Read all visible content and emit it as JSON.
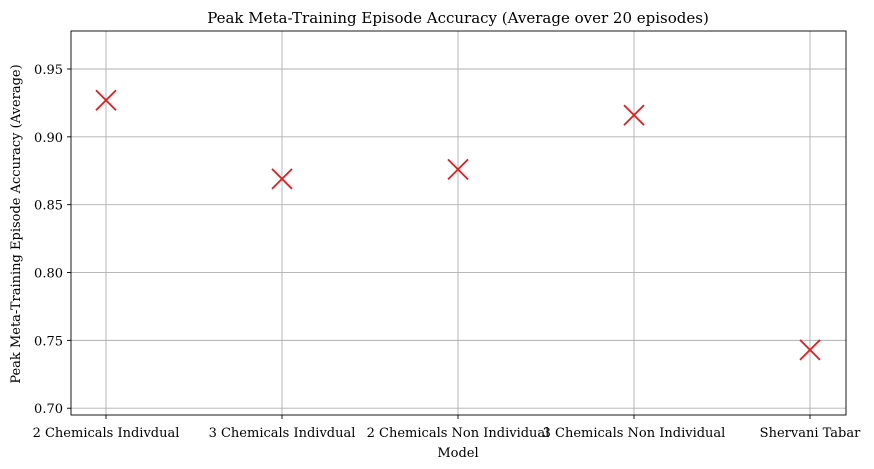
{
  "chart_data": {
    "type": "scatter",
    "title": "Peak Meta-Training Episode Accuracy (Average over 20 episodes)",
    "xlabel": "Model",
    "ylabel": "Peak Meta-Training Episode Accuracy (Average)",
    "categories": [
      "2 Chemicals Indivdual",
      "3 Chemicals Indivdual",
      "2 Chemicals Non Individual",
      "3 Chemicals Non Individual",
      "Shervani Tabar"
    ],
    "values": [
      0.927,
      0.869,
      0.876,
      0.916,
      0.743
    ],
    "ylim": [
      0.695,
      0.978
    ],
    "yticks": [
      0.7,
      0.75,
      0.8,
      0.85,
      0.9,
      0.95
    ],
    "ytick_labels": [
      "0.70",
      "0.75",
      "0.80",
      "0.85",
      "0.90",
      "0.95"
    ],
    "grid": true,
    "marker": "x",
    "marker_color": "#e8191b"
  }
}
